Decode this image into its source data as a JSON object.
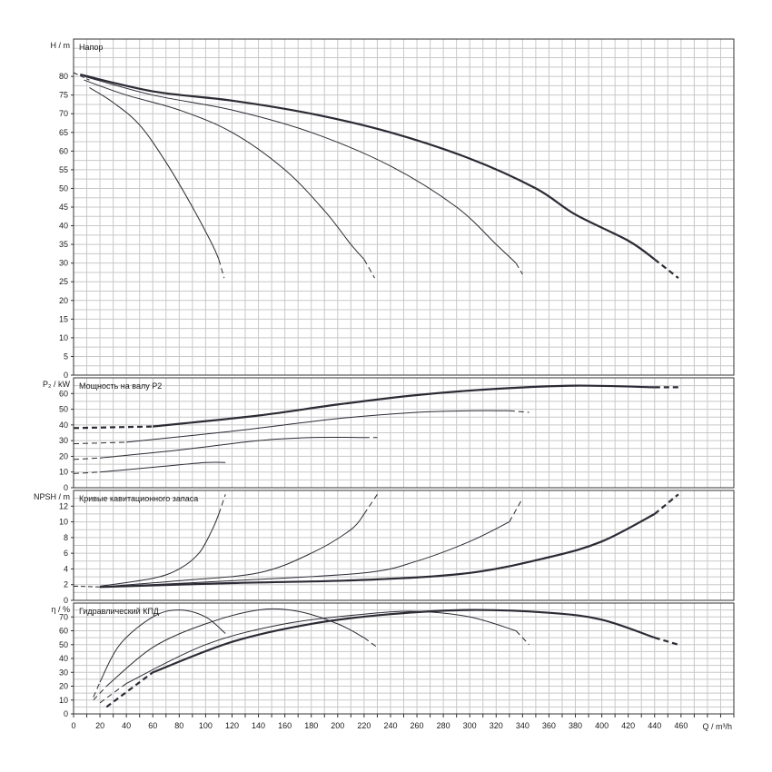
{
  "chart_data": [
    {
      "id": "head",
      "type": "line",
      "title": "Напор",
      "ylabel": "H / m",
      "ylim": [
        0,
        90
      ],
      "yticks": [
        0,
        5,
        10,
        15,
        20,
        25,
        30,
        35,
        40,
        45,
        50,
        55,
        60,
        65,
        70,
        75,
        80
      ],
      "series": [
        {
          "width": 1.0,
          "points": [
            [
              12,
              77
            ],
            [
              30,
              73
            ],
            [
              50,
              67
            ],
            [
              70,
              57
            ],
            [
              90,
              45
            ],
            [
              105,
              35
            ],
            [
              110,
              31
            ]
          ],
          "dashed": [
            [
              110,
              31
            ],
            [
              114,
              26
            ]
          ]
        },
        {
          "width": 1.0,
          "points": [
            [
              8,
              79
            ],
            [
              40,
              75
            ],
            [
              80,
              71
            ],
            [
              120,
              65
            ],
            [
              160,
              55
            ],
            [
              190,
              44
            ],
            [
              210,
              35
            ],
            [
              220,
              31
            ]
          ],
          "dashed": [
            [
              220,
              31
            ],
            [
              228,
              26
            ]
          ]
        },
        {
          "width": 1.0,
          "points": [
            [
              8,
              80
            ],
            [
              60,
              75
            ],
            [
              120,
              71
            ],
            [
              180,
              65
            ],
            [
              240,
              56
            ],
            [
              290,
              45
            ],
            [
              320,
              35
            ],
            [
              335,
              30
            ]
          ],
          "dashed": [
            [
              335,
              30
            ],
            [
              340,
              27
            ]
          ]
        },
        {
          "width": 2.2,
          "points": [
            [
              5,
              80.5
            ],
            [
              60,
              76
            ],
            [
              120,
              73.5
            ],
            [
              180,
              70
            ],
            [
              240,
              65
            ],
            [
              300,
              58
            ],
            [
              350,
              50
            ],
            [
              380,
              43
            ],
            [
              420,
              36
            ],
            [
              440,
              31
            ]
          ],
          "dashed": [
            [
              440,
              31
            ],
            [
              458,
              26
            ]
          ]
        }
      ],
      "dashed_origin": [
        [
          0,
          81
        ],
        [
          12,
          79
        ]
      ]
    },
    {
      "id": "power",
      "type": "line",
      "title": "Мощность на валу P2",
      "ylabel": "P₂ / kW",
      "ylim": [
        0,
        70
      ],
      "yticks": [
        0,
        10,
        20,
        30,
        40,
        50,
        60
      ],
      "series": [
        {
          "width": 1.0,
          "dashed": [
            [
              0,
              9
            ],
            [
              20,
              10
            ]
          ],
          "points": [
            [
              20,
              10
            ],
            [
              60,
              13
            ],
            [
              100,
              16
            ],
            [
              115,
              16
            ]
          ]
        },
        {
          "width": 1.0,
          "dashed": [
            [
              0,
              18
            ],
            [
              20,
              19
            ]
          ],
          "points": [
            [
              20,
              19
            ],
            [
              80,
              24
            ],
            [
              140,
              30
            ],
            [
              180,
              32
            ],
            [
              220,
              32
            ]
          ],
          "dashed_end": [
            [
              220,
              32
            ],
            [
              230,
              32
            ]
          ]
        },
        {
          "width": 1.0,
          "dashed": [
            [
              0,
              28
            ],
            [
              40,
              29
            ]
          ],
          "points": [
            [
              40,
              29
            ],
            [
              120,
              36
            ],
            [
              200,
              44
            ],
            [
              260,
              48
            ],
            [
              300,
              49
            ],
            [
              330,
              49
            ]
          ],
          "dashed_end": [
            [
              330,
              49
            ],
            [
              345,
              48
            ]
          ]
        },
        {
          "width": 2.2,
          "dashed": [
            [
              0,
              38
            ],
            [
              60,
              39
            ]
          ],
          "points": [
            [
              60,
              39
            ],
            [
              140,
              46
            ],
            [
              200,
              53
            ],
            [
              260,
              59
            ],
            [
              320,
              63
            ],
            [
              380,
              65
            ],
            [
              440,
              64
            ]
          ],
          "dashed_end": [
            [
              440,
              64
            ],
            [
              458,
              64
            ]
          ]
        }
      ]
    },
    {
      "id": "npsh",
      "type": "line",
      "title": "Кривые кавитационного запаса",
      "ylabel": "NPSH / m",
      "ylim": [
        0,
        14
      ],
      "yticks": [
        0,
        2,
        4,
        6,
        8,
        10,
        12
      ],
      "series": [
        {
          "width": 1.0,
          "points": [
            [
              20,
              1.8
            ],
            [
              60,
              2.8
            ],
            [
              80,
              4
            ],
            [
              95,
              6
            ],
            [
              105,
              9
            ],
            [
              110,
              11
            ]
          ],
          "dashed": [
            [
              110,
              11
            ],
            [
              115,
              13.5
            ]
          ]
        },
        {
          "width": 1.0,
          "points": [
            [
              20,
              1.7
            ],
            [
              80,
              2.5
            ],
            [
              140,
              3.5
            ],
            [
              180,
              6
            ],
            [
              210,
              9
            ],
            [
              220,
              11
            ]
          ],
          "dashed": [
            [
              220,
              11
            ],
            [
              230,
              13.5
            ]
          ]
        },
        {
          "width": 1.0,
          "points": [
            [
              20,
              1.7
            ],
            [
              120,
              2.5
            ],
            [
              220,
              3.5
            ],
            [
              260,
              5
            ],
            [
              300,
              7.5
            ],
            [
              330,
              10
            ]
          ],
          "dashed": [
            [
              330,
              10
            ],
            [
              340,
              13
            ]
          ]
        },
        {
          "width": 2.2,
          "points": [
            [
              20,
              1.7
            ],
            [
              120,
              2.2
            ],
            [
              220,
              2.6
            ],
            [
              300,
              3.5
            ],
            [
              360,
              5.5
            ],
            [
              400,
              7.5
            ],
            [
              440,
              11
            ]
          ],
          "dashed": [
            [
              440,
              11
            ],
            [
              458,
              13.5
            ]
          ]
        }
      ],
      "dashed_origin": [
        [
          0,
          1.8
        ],
        [
          20,
          1.7
        ]
      ]
    },
    {
      "id": "efficiency",
      "type": "line",
      "title": "Гидравлический КПД",
      "ylabel": "η / %",
      "ylim": [
        0,
        80
      ],
      "yticks": [
        0,
        10,
        20,
        30,
        40,
        50,
        60,
        70
      ],
      "xlabel": "Q / m³/h",
      "xlim": [
        0,
        500
      ],
      "xticks": [
        0,
        20,
        40,
        60,
        80,
        100,
        120,
        140,
        160,
        180,
        200,
        220,
        240,
        260,
        280,
        300,
        320,
        340,
        360,
        380,
        400,
        420,
        440,
        460
      ],
      "series": [
        {
          "width": 1.0,
          "dashed": [
            [
              15,
              12
            ],
            [
              20,
              23
            ]
          ],
          "points": [
            [
              20,
              23
            ],
            [
              35,
              50
            ],
            [
              60,
              70
            ],
            [
              80,
              75
            ],
            [
              100,
              70
            ],
            [
              115,
              58
            ]
          ]
        },
        {
          "width": 1.0,
          "dashed": [
            [
              15,
              10
            ],
            [
              25,
              20
            ]
          ],
          "points": [
            [
              25,
              20
            ],
            [
              60,
              48
            ],
            [
              100,
              65
            ],
            [
              140,
              75
            ],
            [
              170,
              74
            ],
            [
              200,
              65
            ],
            [
              220,
              55
            ]
          ],
          "dashed_end": [
            [
              220,
              55
            ],
            [
              230,
              48
            ]
          ]
        },
        {
          "width": 1.0,
          "dashed": [
            [
              20,
              8
            ],
            [
              40,
              22
            ]
          ],
          "points": [
            [
              40,
              22
            ],
            [
              100,
              50
            ],
            [
              160,
              65
            ],
            [
              220,
              72
            ],
            [
              260,
              74
            ],
            [
              300,
              70
            ],
            [
              335,
              60
            ]
          ],
          "dashed_end": [
            [
              335,
              60
            ],
            [
              345,
              50
            ]
          ]
        },
        {
          "width": 2.2,
          "dashed": [
            [
              25,
              5
            ],
            [
              60,
              30
            ]
          ],
          "points": [
            [
              60,
              30
            ],
            [
              120,
              52
            ],
            [
              180,
              65
            ],
            [
              240,
              72
            ],
            [
              300,
              75
            ],
            [
              360,
              73
            ],
            [
              400,
              68
            ],
            [
              440,
              55
            ]
          ],
          "dashed_end": [
            [
              440,
              55
            ],
            [
              458,
              50
            ]
          ]
        }
      ]
    }
  ]
}
